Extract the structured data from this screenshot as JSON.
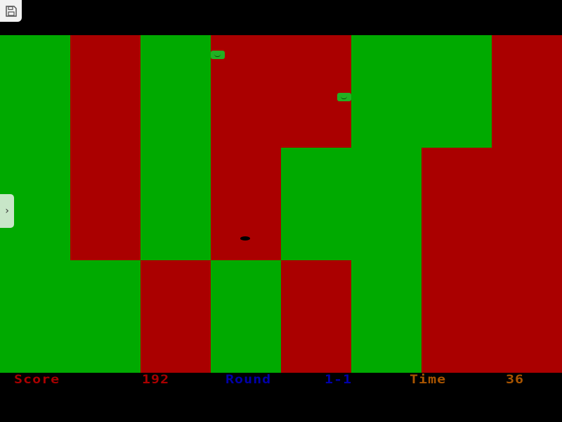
{
  "colors": {
    "green": "#00aa00",
    "red": "#aa0000",
    "score": "#aa0000",
    "round": "#0000aa",
    "time": "#aa5500"
  },
  "board": [
    [
      "green",
      "red",
      "green",
      "red",
      "red",
      "green",
      "green",
      "red"
    ],
    [
      "green",
      "red",
      "green",
      "red",
      "green",
      "green",
      "red",
      "red"
    ],
    [
      "green",
      "green",
      "red",
      "green",
      "red",
      "green",
      "red",
      "red"
    ]
  ],
  "status": {
    "score_label": "Score",
    "score": "192",
    "round_label": "Round",
    "round": "1-1",
    "time_label": "Time",
    "time": "36"
  },
  "icons": {
    "save": "floppy-disk-icon",
    "side_tab": "chevron-right-icon"
  }
}
